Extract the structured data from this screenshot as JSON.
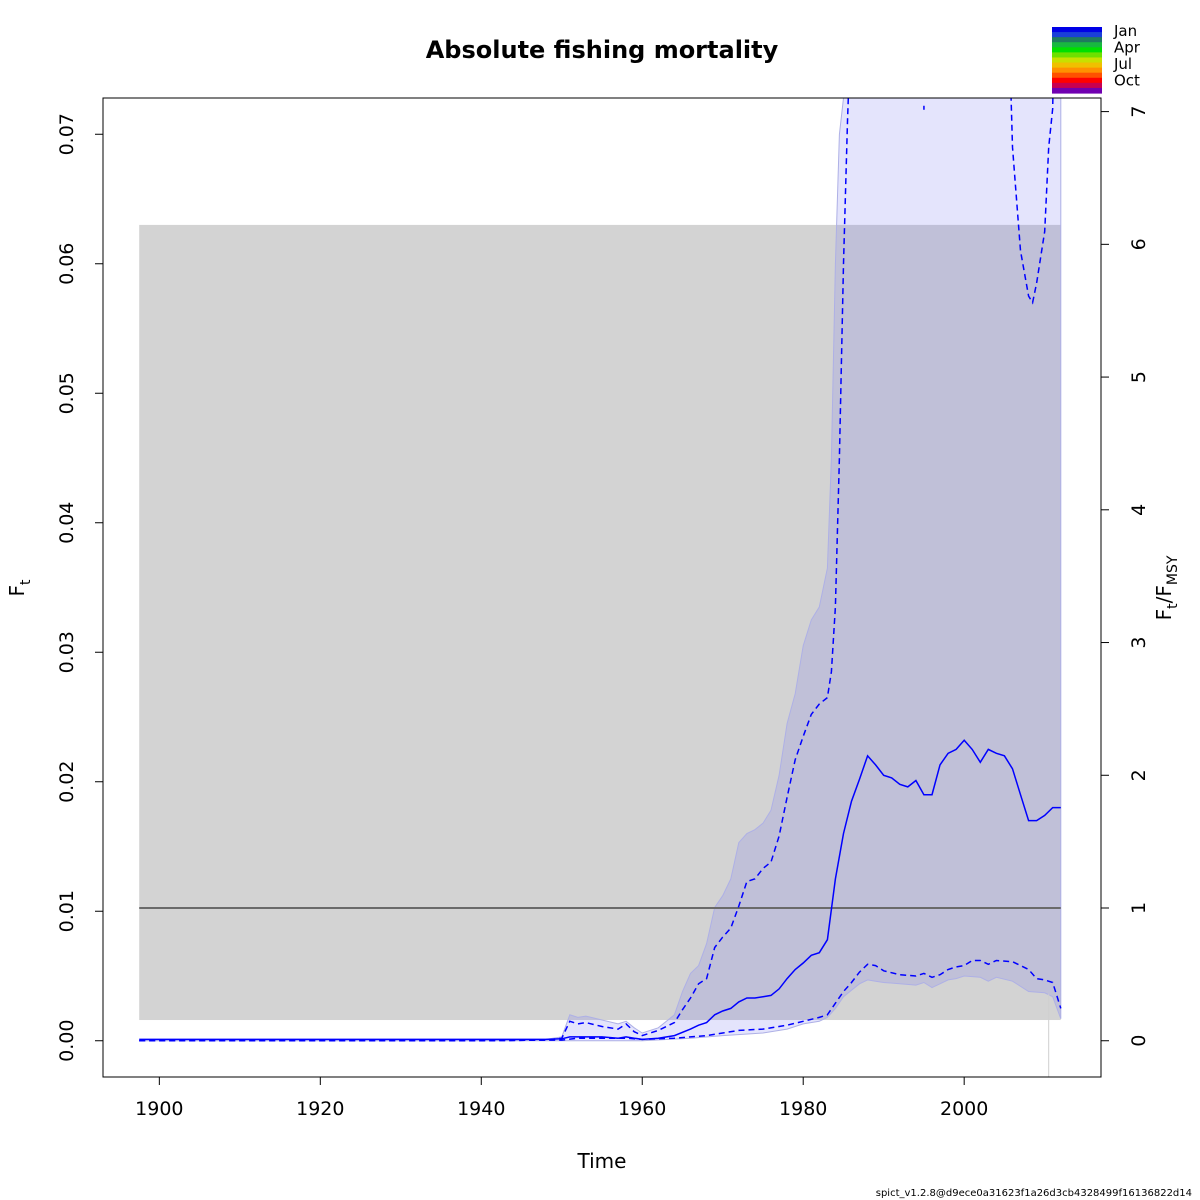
{
  "chart_data": {
    "type": "line",
    "title": "Absolute fishing mortality",
    "xlabel": "Time",
    "ylabel_main": "F",
    "ylabel_sub": "t",
    "ylabel_right_main": "F",
    "ylabel_right_sub1": "t",
    "ylabel_right_sep": "/F",
    "ylabel_right_sub2": "MSY",
    "xlim": [
      1893,
      2017
    ],
    "ylim": [
      -0.0028,
      0.0728
    ],
    "xticks": [
      1900,
      1920,
      1940,
      1960,
      1980,
      2000
    ],
    "yticks": [
      0.0,
      0.01,
      0.02,
      0.03,
      0.04,
      0.05,
      0.06,
      0.07
    ],
    "ytick_labels": [
      "0.00",
      "0.01",
      "0.02",
      "0.03",
      "0.04",
      "0.05",
      "0.06",
      "0.07"
    ],
    "right_axis": {
      "fmsy": 0.01025,
      "ticks": [
        0,
        1,
        2,
        3,
        4,
        5,
        6,
        7
      ],
      "tick_labels": [
        "0",
        "1",
        "2",
        "3",
        "4",
        "5",
        "6",
        "7"
      ]
    },
    "fmsy_band": {
      "x0": 1897.5,
      "x1": 2012,
      "y0": 0.0016,
      "y1": 0.063,
      "color": "#d3d3d3"
    },
    "fmsy_line": {
      "y": 0.01025,
      "x0": 1897.5,
      "x1": 2012,
      "color": "#6a6a6a"
    },
    "vertical_marker_x": 2010.5,
    "colors": {
      "line": "#0000ff",
      "ci": "#e3e3fc",
      "ci_outer": "#aeb0e6",
      "band_overlap": "#bbbdd9"
    },
    "series": [
      {
        "name": "",
        "x": [
          1897.5,
          1920,
          1940,
          1948,
          1950,
          1951,
          1952,
          1953,
          1955,
          1957,
          1958,
          1959,
          1960,
          1962,
          1964,
          1966,
          1967,
          1968,
          1969,
          1970,
          1971,
          1972,
          1973,
          1974,
          1975,
          1976,
          1977,
          1978,
          1979,
          1980,
          1981,
          1982,
          1983,
          1984,
          1985,
          1986,
          1987,
          1988,
          1989,
          1990,
          1991,
          1992,
          1993,
          1994,
          1995,
          1996,
          1997,
          1998,
          1999,
          2000,
          2001,
          2002,
          2003,
          2004,
          2005,
          2006,
          2007,
          2008,
          2009,
          2010,
          2011,
          2012
        ],
        "y": [
          0.0001,
          0.0001,
          0.0001,
          0.0001,
          0.00015,
          0.0003,
          0.0003,
          0.0003,
          0.0003,
          0.0002,
          0.0003,
          0.0002,
          0.0001,
          0.0002,
          0.0004,
          0.0009,
          0.0012,
          0.0014,
          0.002,
          0.0023,
          0.0025,
          0.003,
          0.0033,
          0.0033,
          0.0034,
          0.0035,
          0.004,
          0.0048,
          0.0055,
          0.006,
          0.0066,
          0.0068,
          0.0078,
          0.0125,
          0.016,
          0.0185,
          0.0202,
          0.022,
          0.0213,
          0.0205,
          0.0203,
          0.0198,
          0.0196,
          0.0201,
          0.019,
          0.019,
          0.0213,
          0.0222,
          0.0225,
          0.0232,
          0.0225,
          0.0215,
          0.0225,
          0.0222,
          0.022,
          0.021,
          0.019,
          0.017,
          0.017,
          0.0174,
          0.018,
          0.018
        ]
      }
    ],
    "ci_lower": {
      "x": [
        1897.5,
        1940,
        1948,
        1950,
        1952,
        1955,
        1958,
        1960,
        1964,
        1966,
        1968,
        1970,
        1972,
        1975,
        1978,
        1980,
        1982,
        1983,
        1984,
        1985,
        1986,
        1987,
        1988,
        1989,
        1990,
        1992,
        1994,
        1995,
        1996,
        1997,
        1998,
        1999,
        2000,
        2001,
        2002,
        2003,
        2004,
        2006,
        2008,
        2009,
        2010,
        2011,
        2012
      ],
      "y": [
        0.0,
        0.0,
        5e-05,
        5e-05,
        0.0002,
        0.0002,
        0.0002,
        0.0001,
        0.0002,
        0.0003,
        0.0004,
        0.0006,
        0.0008,
        0.0009,
        0.0012,
        0.0015,
        0.0018,
        0.002,
        0.0029,
        0.0038,
        0.0045,
        0.0053,
        0.0059,
        0.0058,
        0.0054,
        0.0051,
        0.005,
        0.0052,
        0.0049,
        0.0051,
        0.0055,
        0.0057,
        0.0058,
        0.0062,
        0.0062,
        0.0059,
        0.0062,
        0.0061,
        0.0055,
        0.0048,
        0.0047,
        0.0045,
        0.0025
      ]
    },
    "ci_upper": {
      "x": [
        1897.5,
        1940,
        1948,
        1950,
        1951,
        1952,
        1953,
        1955,
        1957,
        1958,
        1959,
        1960,
        1962,
        1964,
        1965,
        1966,
        1967,
        1968,
        1969,
        1970,
        1971,
        1972,
        1973,
        1974,
        1975,
        1976,
        1977,
        1978,
        1979,
        1980,
        1981,
        1982,
        1983,
        1983.5,
        1984,
        1984.5,
        1985,
        1985.5,
        1986
      ],
      "y": [
        0.0,
        0.0,
        5e-05,
        0.0002,
        0.0015,
        0.0013,
        0.0014,
        0.0011,
        0.0009,
        0.0013,
        0.0007,
        0.0004,
        0.0008,
        0.0014,
        0.0024,
        0.0033,
        0.0044,
        0.0048,
        0.0072,
        0.008,
        0.0087,
        0.0104,
        0.0123,
        0.0125,
        0.0133,
        0.0138,
        0.0158,
        0.0188,
        0.0217,
        0.0235,
        0.0252,
        0.026,
        0.0265,
        0.0285,
        0.0335,
        0.045,
        0.06,
        0.071,
        0.08
      ]
    },
    "ci_upper_tail": {
      "x": [
        2005.5,
        2006,
        2007,
        2008,
        2008.5,
        2009,
        2010,
        2010.5,
        2011,
        2011.2
      ],
      "y": [
        0.08,
        0.069,
        0.061,
        0.0575,
        0.057,
        0.0585,
        0.0625,
        0.069,
        0.072,
        0.08
      ]
    },
    "ci_upper_dot": {
      "x": 1995,
      "y": 0.0722
    },
    "ci_outer_upper": {
      "x": [
        1897.5,
        1940,
        1948,
        1950,
        1951,
        1952,
        1953,
        1955,
        1957,
        1958,
        1959,
        1960,
        1962,
        1964,
        1965,
        1966,
        1967,
        1968,
        1969,
        1970,
        1971,
        1972,
        1973,
        1974,
        1975,
        1976,
        1977,
        1978,
        1979,
        1980,
        1981,
        1982,
        1983,
        1983.5,
        1984,
        1984.5,
        1985
      ],
      "y": [
        0.0,
        0.0,
        0.0001,
        0.0003,
        0.002,
        0.0018,
        0.0019,
        0.0016,
        0.0013,
        0.0015,
        0.001,
        0.0006,
        0.001,
        0.002,
        0.0038,
        0.0052,
        0.0058,
        0.0075,
        0.0103,
        0.0112,
        0.0125,
        0.0153,
        0.016,
        0.0163,
        0.0168,
        0.0178,
        0.0205,
        0.0245,
        0.0268,
        0.0305,
        0.0325,
        0.0335,
        0.0365,
        0.045,
        0.06,
        0.07,
        0.08
      ]
    },
    "ci_outer_lower": {
      "x": [
        1897.5,
        1960,
        1966,
        1970,
        1975,
        1978,
        1980,
        1982,
        1983,
        1984,
        1985,
        1986,
        1987,
        1988,
        1989,
        1990,
        1992,
        1994,
        1995,
        1996,
        1997,
        1998,
        1999,
        2000,
        2002,
        2003,
        2004,
        2006,
        2008,
        2010,
        2011,
        2012
      ],
      "y": [
        0.0,
        0.0,
        0.0002,
        0.0004,
        0.0006,
        0.0009,
        0.0013,
        0.0015,
        0.0018,
        0.0025,
        0.0034,
        0.0039,
        0.0044,
        0.0047,
        0.0046,
        0.0045,
        0.0044,
        0.0043,
        0.0045,
        0.0041,
        0.0044,
        0.0047,
        0.0048,
        0.005,
        0.0049,
        0.0046,
        0.0049,
        0.0046,
        0.0038,
        0.0037,
        0.0034,
        0.0017
      ]
    }
  },
  "legend": {
    "labels": [
      "Jan",
      "Apr",
      "Jul",
      "Oct"
    ],
    "colors": [
      "#0000e6",
      "#1a3fd9",
      "#1f7a5e",
      "#18b840",
      "#00e000",
      "#6ee000",
      "#c8e000",
      "#f0c000",
      "#ff9000",
      "#ff5000",
      "#ff0000",
      "#c80050",
      "#7000b0"
    ]
  },
  "footnote": "spict_v1.2.8@d9ece0a31623f1a26d3cb4328499f16136822d14"
}
